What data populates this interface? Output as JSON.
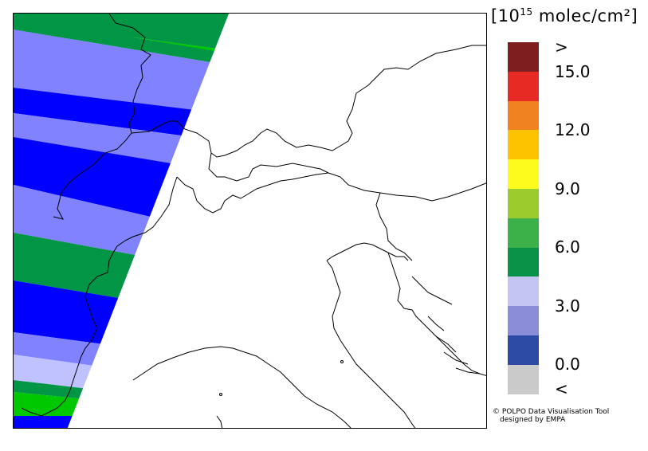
{
  "unit": {
    "prefix": "[10",
    "exponent": "15",
    "suffix": " molec/cm²]"
  },
  "legend": {
    "colors": [
      "#7e1f1f",
      "#e82a25",
      "#f0831f",
      "#fec300",
      "#fdfb1d",
      "#9bcb2c",
      "#3cb14a",
      "#0a9148",
      "#c4c5f1",
      "#8a8ed8",
      "#2d4ba5",
      "#cacaca"
    ],
    "ticks": [
      ">",
      "15.0",
      "12.0",
      "9.0",
      "6.0",
      "3.0",
      "0.0",
      "<"
    ]
  },
  "map": {
    "swath_colors": {
      "green": "#00c800",
      "dark_green": "#009646",
      "light_blue": "#8082ff",
      "blue": "#0000ff",
      "pale_blue": "#c0c2ff"
    }
  },
  "credit": {
    "line1": "© POLPO Data Visualisation Tool",
    "line2": "designed by EMPA"
  }
}
